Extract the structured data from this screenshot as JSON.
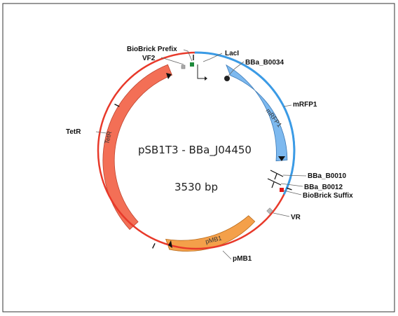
{
  "plasmid": {
    "name": "pSB1T3 - BBa_J04450",
    "length_label": "3530 bp"
  },
  "features": {
    "mrfp1": "mRFP1",
    "tetr": "TetR",
    "pmb1": "pMB1"
  },
  "labels": {
    "biobrick_prefix": "BioBrick Prefix",
    "vf2": "VF2",
    "laci": "LacI",
    "bba_b0034": "BBa_B0034",
    "mrfp1": "mRFP1",
    "tetr": "TetR",
    "bba_b0010": "BBa_B0010",
    "bba_b0012": "BBa_B0012",
    "biobrick_suffix": "BioBrick Suffix",
    "vr": "VR",
    "pmb1": "pMB1"
  },
  "colors": {
    "backbone": "#e8392a",
    "insert": "#3a9be6",
    "mrfp1": "#7db9ef",
    "tetr": "#f36f56",
    "pmb1": "#f4a04a",
    "prefix": "#1e8a3c",
    "suffix": "#e01818"
  }
}
